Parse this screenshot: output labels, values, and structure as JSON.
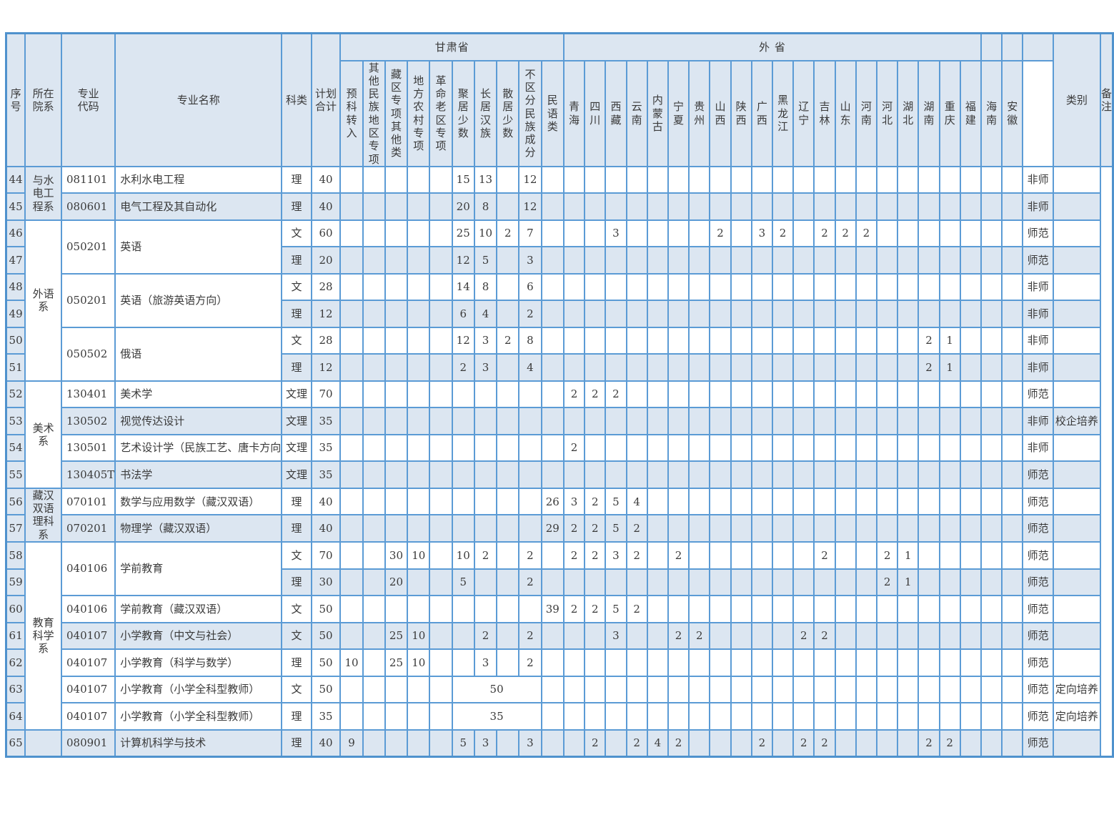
{
  "header": {
    "fixed": [
      "序\n号",
      "所在\n院系",
      "专业\n代码",
      "专业名称",
      "科类",
      "计划\n合计"
    ],
    "gansu_group": "甘肃省",
    "waisheng_group": "外    省",
    "gansu_cols": [
      "预\n科\n转\n入",
      "其他\n民族\n地区\n专项",
      "藏\n区\n专\n项\n其\n他\n类",
      "地\n方\n农\n村\n专\n项",
      "革\n命\n老\n区\n专\n项",
      "聚\n居\n少\n数",
      "长\n居\n汉\n族",
      "散\n居\n少\n数",
      "不\n区\n分\n民\n族\n成\n分",
      "民\n语\n类"
    ],
    "province_cols": [
      "青\n海",
      "四\n川",
      "西\n藏",
      "云\n南",
      "内\n蒙\n古",
      "宁\n夏",
      "贵\n州",
      "山\n西",
      "陕\n西",
      "广\n西",
      "黑\n龙\n江",
      "辽\n宁",
      "吉\n林",
      "山\n东",
      "河\n南",
      "河\n北",
      "湖\n北",
      "湖\n南",
      "重\n庆",
      "福\n建",
      "海\n南",
      "安\n徽"
    ],
    "tail": [
      "类别",
      "备注"
    ]
  },
  "rows": [
    {
      "shade": "w",
      "cells": {
        "seq": "44",
        "dept": {
          "t": "与水\n电工\n程系",
          "rs": 2,
          "shade": "b"
        },
        "code": "081101",
        "name": "水利水电工程",
        "kelei": "理",
        "total": "40",
        "jj": "15",
        "cj": "13",
        "bqf": "12",
        "leibie": "非师"
      }
    },
    {
      "shade": "b",
      "cells": {
        "seq": "45",
        "code": "080601",
        "name": "电气工程及其自动化",
        "kelei": "理",
        "total": "40",
        "jj": "20",
        "cj": "8",
        "bqf": "12",
        "leibie": "非师"
      }
    },
    {
      "shade": "w",
      "cells": {
        "seq": "46",
        "dept": {
          "t": "外语\n系",
          "rs": 6,
          "shade": "w"
        },
        "code": {
          "t": "050201",
          "rs": 2
        },
        "name": {
          "t": "英语",
          "rs": 2
        },
        "kelei": "文",
        "total": "60",
        "jj": "25",
        "cj": "10",
        "sj": "2",
        "bqf": "7",
        "xizang": "3",
        "shanxi": "2",
        "guangxi": "3",
        "heilongjiang": "2",
        "jilin": "2",
        "shandong": "2",
        "henan": "2",
        "leibie": "师范"
      }
    },
    {
      "shade": "b",
      "cells": {
        "seq": "47",
        "kelei": "理",
        "total": "20",
        "jj": "12",
        "cj": "5",
        "bqf": "3",
        "leibie": "师范"
      }
    },
    {
      "shade": "w",
      "cells": {
        "seq": "48",
        "code": {
          "t": "050201",
          "rs": 2
        },
        "name": {
          "t": "英语（旅游英语方向）",
          "rs": 2
        },
        "kelei": "文",
        "total": "28",
        "jj": "14",
        "cj": "8",
        "bqf": "6",
        "leibie": "非师"
      }
    },
    {
      "shade": "b",
      "cells": {
        "seq": "49",
        "kelei": "理",
        "total": "12",
        "jj": "6",
        "cj": "4",
        "bqf": "2",
        "leibie": "非师"
      }
    },
    {
      "shade": "w",
      "cells": {
        "seq": "50",
        "code": {
          "t": "050502",
          "rs": 2
        },
        "name": {
          "t": "俄语",
          "rs": 2
        },
        "kelei": "文",
        "total": "28",
        "jj": "12",
        "cj": "3",
        "sj": "2",
        "bqf": "8",
        "hunan": "2",
        "chongqing": "1",
        "leibie": "非师"
      }
    },
    {
      "shade": "b",
      "cells": {
        "seq": "51",
        "kelei": "理",
        "total": "12",
        "jj": "2",
        "cj": "3",
        "bqf": "4",
        "hunan": "2",
        "chongqing": "1",
        "leibie": "非师"
      }
    },
    {
      "shade": "w",
      "cells": {
        "seq": "52",
        "dept": {
          "t": "美术\n系",
          "rs": 4,
          "shade": "w"
        },
        "code": "130401",
        "name": "美术学",
        "kelei": "文理",
        "total": "70",
        "qinghai": "2",
        "sichuan": "2",
        "xizang": "2",
        "leibie": "师范"
      }
    },
    {
      "shade": "b",
      "cells": {
        "seq": "53",
        "code": "130502",
        "name": "视觉传达设计",
        "kelei": "文理",
        "total": "35",
        "leibie": "非师",
        "beizhu": "校企培养"
      }
    },
    {
      "shade": "w",
      "cells": {
        "seq": "54",
        "code": "130501",
        "name": "艺术设计学（民族工艺、唐卡方向",
        "kelei": "文理",
        "total": "35",
        "qinghai": "2",
        "leibie": "非师"
      }
    },
    {
      "shade": "b",
      "cells": {
        "seq": "55",
        "code": "130405T",
        "name": "书法学",
        "kelei": "文理",
        "total": "35",
        "leibie": "师范"
      }
    },
    {
      "shade": "w",
      "cells": {
        "seq": "56",
        "dept": {
          "t": "藏汉\n双语\n理科\n系",
          "rs": 2,
          "shade": "b"
        },
        "code": "070101",
        "name": "数学与应用数学（藏汉双语）",
        "kelei": "理",
        "total": "40",
        "myl": "26",
        "qinghai": "3",
        "sichuan": "2",
        "xizang": "5",
        "yunnan": "4",
        "leibie": "师范"
      }
    },
    {
      "shade": "b",
      "cells": {
        "seq": "57",
        "code": "070201",
        "name": "物理学（藏汉双语）",
        "kelei": "理",
        "total": "40",
        "myl": "29",
        "qinghai": "2",
        "sichuan": "2",
        "xizang": "5",
        "yunnan": "2",
        "leibie": "师范"
      }
    },
    {
      "shade": "w",
      "cells": {
        "seq": "58",
        "dept": {
          "t": "教育\n科学\n系",
          "rs": 7,
          "shade": "w"
        },
        "code": {
          "t": "040106",
          "rs": 2
        },
        "name": {
          "t": "学前教育",
          "rs": 2
        },
        "kelei": "文",
        "total": "70",
        "zq": "30",
        "dfnc": "10",
        "jj": "10",
        "cj": "2",
        "bqf": "2",
        "qinghai": "2",
        "sichuan": "2",
        "xizang": "3",
        "yunnan": "2",
        "ningxia": "2",
        "jilin": "2",
        "hebei": "2",
        "hubei": "1",
        "leibie": "师范"
      }
    },
    {
      "shade": "b",
      "cells": {
        "seq": "59",
        "kelei": "理",
        "total": "30",
        "zq": "20",
        "jj": "5",
        "bqf": "2",
        "hebei": "2",
        "hubei": "1",
        "leibie": "师范"
      }
    },
    {
      "shade": "w",
      "cells": {
        "seq": "60",
        "code": "040106",
        "name": "学前教育（藏汉双语）",
        "kelei": "文",
        "total": "50",
        "myl": "39",
        "qinghai": "2",
        "sichuan": "2",
        "xizang": "5",
        "yunnan": "2",
        "leibie": "师范"
      }
    },
    {
      "shade": "b",
      "cells": {
        "seq": "61",
        "code": "040107",
        "name": "小学教育（中文与社会）",
        "kelei": "文",
        "total": "50",
        "zq": "25",
        "dfnc": "10",
        "cj": "2",
        "bqf": "2",
        "xizang": "3",
        "ningxia": "2",
        "guizhou": "2",
        "liaoning": "2",
        "jilin": "2",
        "leibie": "师范"
      }
    },
    {
      "shade": "w",
      "cells": {
        "seq": "62",
        "code": "040107",
        "name": "小学教育（科学与数学）",
        "kelei": "理",
        "total": "50",
        "yk": "10",
        "zq": "25",
        "dfnc": "10",
        "cj": "3",
        "bqf": "2",
        "leibie": "师范"
      }
    },
    {
      "shade": "w",
      "cells": {
        "seq": "63",
        "code": "040107",
        "name": "小学教育（小学全科型教师）",
        "kelei": "文",
        "total": "50",
        "jj": {
          "t": "50",
          "cs": 4
        },
        "leibie": "师范",
        "beizhu": "定向培养"
      }
    },
    {
      "shade": "w",
      "cells": {
        "seq": "64",
        "code": "040107",
        "name": "小学教育（小学全科型教师）",
        "kelei": "理",
        "total": "35",
        "jj": {
          "t": "35",
          "cs": 4
        },
        "leibie": "师范",
        "beizhu": "定向培养"
      }
    },
    {
      "shade": "b",
      "cells": {
        "seq": "65",
        "dept": {
          "t": "",
          "shade": "b"
        },
        "code": "080901",
        "name": "计算机科学与技术",
        "kelei": "理",
        "total": "40",
        "yk": "9",
        "jj": "5",
        "cj": "3",
        "bqf": "3",
        "sichuan": "2",
        "yunnan": "2",
        "neimenggu": "4",
        "ningxia": "2",
        "guangxi": "2",
        "liaoning": "2",
        "jilin": "2",
        "hunan": "2",
        "chongqing": "2",
        "leibie": "师范"
      }
    }
  ],
  "colors": {
    "border": "#5b9bd5",
    "row_fill": "#dce6f1",
    "text": "#3a3a3a"
  }
}
